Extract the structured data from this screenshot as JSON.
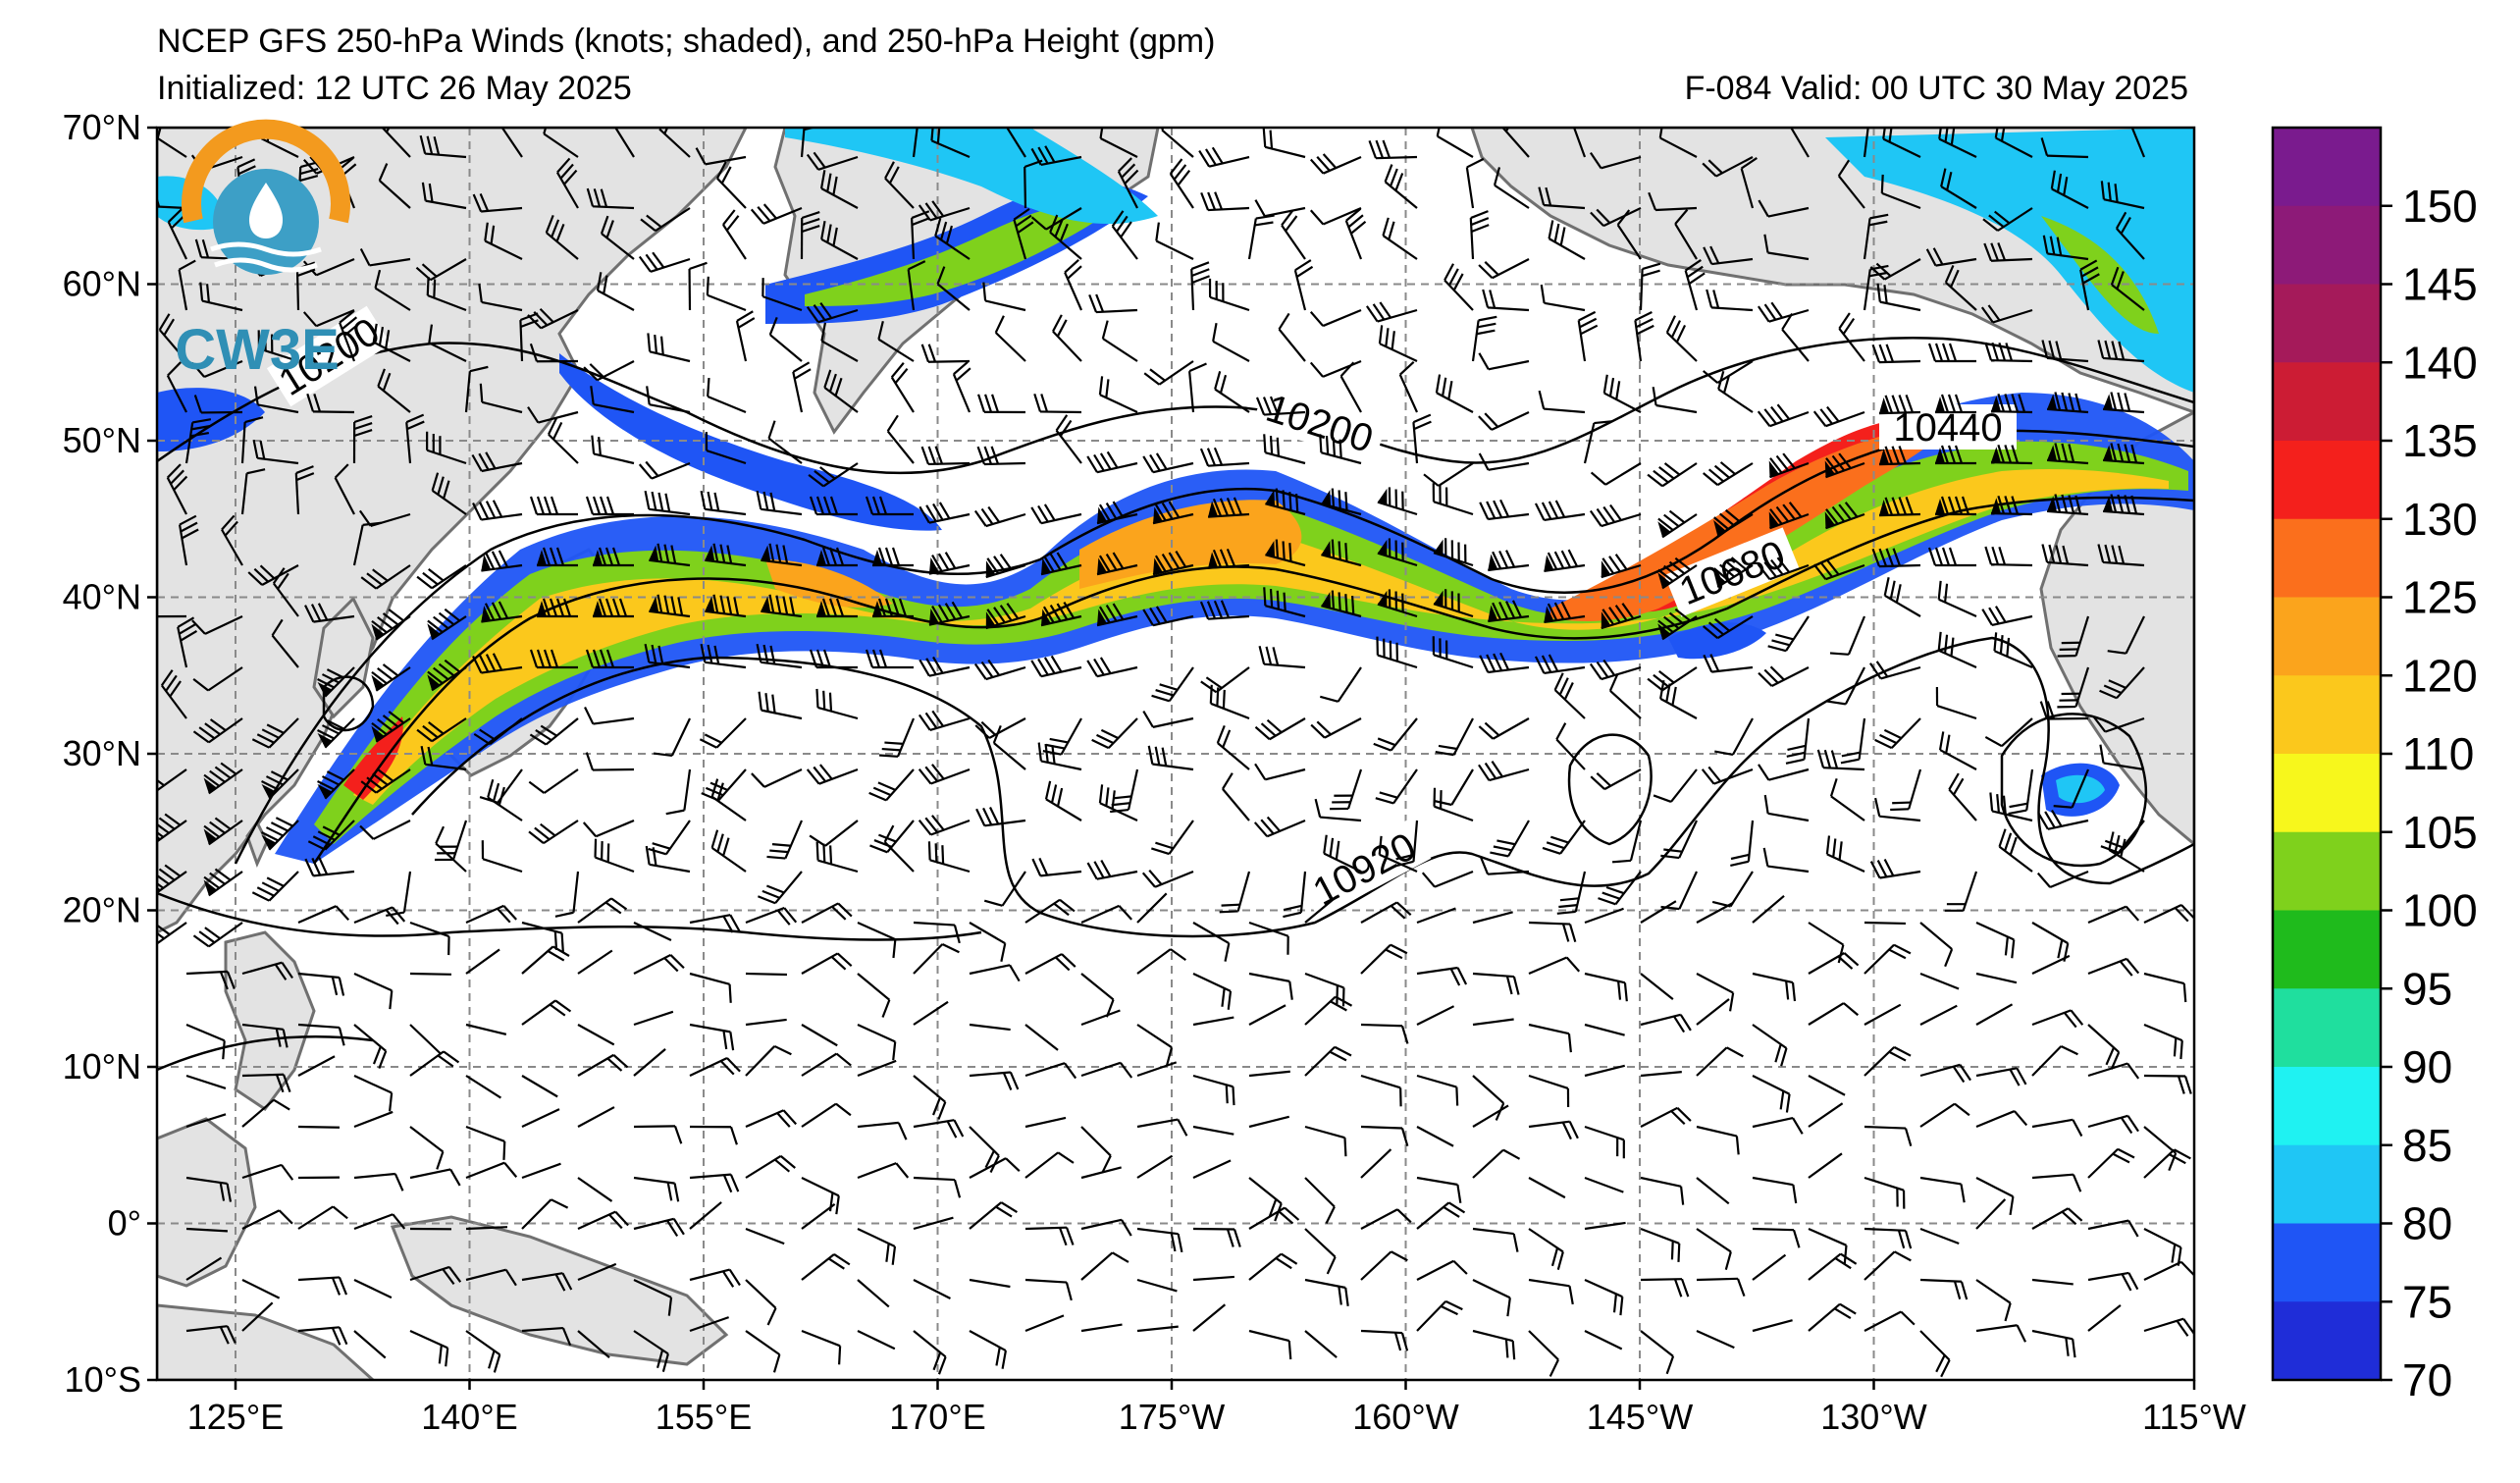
{
  "header": {
    "title": "NCEP GFS 250-hPa Winds (knots; shaded), and 250-hPa Height (gpm)",
    "initialized": "Initialized: 12 UTC 26 May 2025",
    "valid": "F-084  Valid: 00 UTC 30 May 2025"
  },
  "logo": {
    "text": "CW3E"
  },
  "map": {
    "lat_labels": [
      "70°N",
      "60°N",
      "50°N",
      "40°N",
      "30°N",
      "20°N",
      "10°N",
      "0°",
      "10°S"
    ],
    "lon_labels": [
      "125°E",
      "140°E",
      "155°E",
      "170°E",
      "175°W",
      "160°W",
      "145°W",
      "130°W",
      "115°W"
    ],
    "contour_labels": [
      "10200",
      "10440",
      "10680",
      "10920",
      "10200"
    ],
    "colors": {
      "land": "#e3e3e3",
      "coast": "#707070",
      "grid": "#8a8a8a",
      "contour": "#000000"
    }
  },
  "colorbar": {
    "labels": [
      "150",
      "145",
      "140",
      "135",
      "130",
      "125",
      "120",
      "110",
      "105",
      "100",
      "95",
      "90",
      "85",
      "80",
      "75",
      "70"
    ],
    "colors": [
      "#7a1b8e",
      "#8d1a78",
      "#a51a5a",
      "#cc1c34",
      "#f4201c",
      "#fb6f1c",
      "#fba41c",
      "#fbc81c",
      "#f7f71c",
      "#7fd11c",
      "#1fbb1c",
      "#1fdf9e",
      "#1ff2f2",
      "#1fc6f5",
      "#1f55f5",
      "#1f2dd8"
    ]
  }
}
